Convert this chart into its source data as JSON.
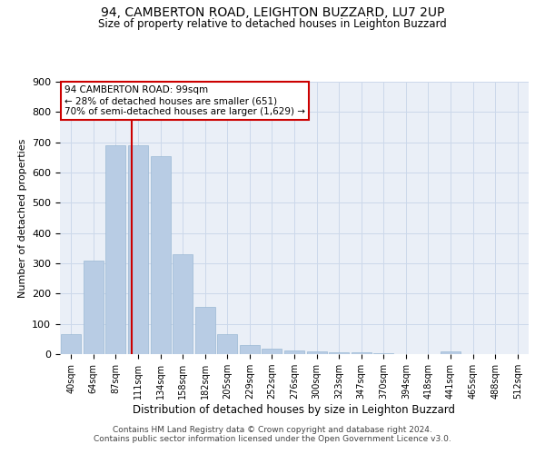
{
  "title_line1": "94, CAMBERTON ROAD, LEIGHTON BUZZARD, LU7 2UP",
  "title_line2": "Size of property relative to detached houses in Leighton Buzzard",
  "xlabel": "Distribution of detached houses by size in Leighton Buzzard",
  "ylabel": "Number of detached properties",
  "categories": [
    "40sqm",
    "64sqm",
    "87sqm",
    "111sqm",
    "134sqm",
    "158sqm",
    "182sqm",
    "205sqm",
    "229sqm",
    "252sqm",
    "276sqm",
    "300sqm",
    "323sqm",
    "347sqm",
    "370sqm",
    "394sqm",
    "418sqm",
    "441sqm",
    "465sqm",
    "488sqm",
    "512sqm"
  ],
  "values": [
    65,
    310,
    690,
    690,
    655,
    330,
    155,
    65,
    30,
    18,
    12,
    8,
    5,
    5,
    2,
    0,
    0,
    8,
    0,
    0,
    0
  ],
  "bar_color": "#b8cce4",
  "bar_edgecolor": "#9ab8d4",
  "grid_color": "#ccd8ea",
  "bg_color": "#eaeff7",
  "red_line_x": 2.72,
  "annotation_title": "94 CAMBERTON ROAD: 99sqm",
  "annotation_line1": "← 28% of detached houses are smaller (651)",
  "annotation_line2": "70% of semi-detached houses are larger (1,629) →",
  "annotation_box_color": "#cc0000",
  "ylim": [
    0,
    900
  ],
  "yticks": [
    0,
    100,
    200,
    300,
    400,
    500,
    600,
    700,
    800,
    900
  ],
  "footnote1": "Contains HM Land Registry data © Crown copyright and database right 2024.",
  "footnote2": "Contains public sector information licensed under the Open Government Licence v3.0."
}
